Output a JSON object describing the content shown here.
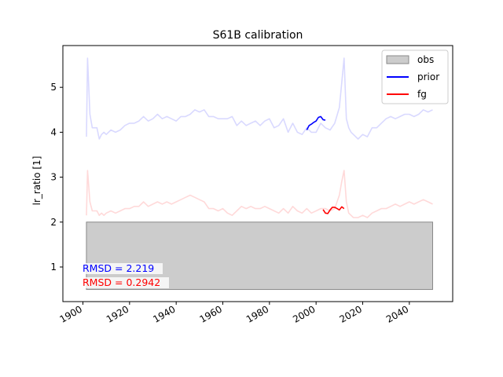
{
  "chart_data": {
    "type": "line",
    "title": "S61B calibration",
    "xlabel": "",
    "ylabel": "lr_ratio [1]",
    "xlim": [
      1891.4,
      2058.6
    ],
    "ylim": [
      0.23,
      5.93
    ],
    "xticks": [
      1900,
      1920,
      1940,
      1960,
      1980,
      2000,
      2020,
      2040
    ],
    "xtick_labels": [
      "1900",
      "1920",
      "1940",
      "1960",
      "1980",
      "2000",
      "2020",
      "2040"
    ],
    "yticks": [
      1,
      2,
      3,
      4,
      5
    ],
    "ytick_labels": [
      "1",
      "2",
      "3",
      "4",
      "5"
    ],
    "grid": false,
    "legend_position": "top-right",
    "legend": [
      {
        "label": "obs",
        "kind": "patch",
        "color": "#cccccc"
      },
      {
        "label": "prior",
        "kind": "line",
        "color": "#0000ff"
      },
      {
        "label": "fg",
        "kind": "line",
        "color": "#ff0000"
      }
    ],
    "obs_band": {
      "x": [
        1901.5,
        2050
      ],
      "y": [
        0.5,
        2.0
      ]
    },
    "series": [
      {
        "name": "prior",
        "color": "#0000ff",
        "x": [
          1996,
          1997,
          1998,
          1999,
          2000,
          2001,
          2002,
          2003,
          2004
        ],
        "y": [
          4.05,
          4.15,
          4.18,
          4.22,
          4.25,
          4.33,
          4.35,
          4.28,
          4.27
        ]
      },
      {
        "name": "fg",
        "color": "#ff0000",
        "x": [
          2003,
          2004,
          2005,
          2006,
          2007,
          2008,
          2009,
          2010,
          2011,
          2012
        ],
        "y": [
          2.28,
          2.2,
          2.19,
          2.27,
          2.33,
          2.33,
          2.3,
          2.27,
          2.34,
          2.3
        ]
      },
      {
        "name": "",
        "color": "#0000ff",
        "opacity": 0.15,
        "x": [
          1901.5,
          1902,
          1903,
          1904,
          1905,
          1906,
          1907,
          1908,
          1909,
          1910,
          1912,
          1914,
          1916,
          1918,
          1920,
          1922,
          1924,
          1926,
          1928,
          1930,
          1932,
          1934,
          1936,
          1938,
          1940,
          1942,
          1944,
          1946,
          1948,
          1950,
          1952,
          1954,
          1956,
          1958,
          1960,
          1962,
          1964,
          1966,
          1968,
          1970,
          1972,
          1974,
          1976,
          1978,
          1980,
          1982,
          1984,
          1986,
          1988,
          1990,
          1992,
          1994,
          1996,
          1998,
          2000,
          2002,
          2004,
          2006,
          2008,
          2010,
          2011,
          2012,
          2013,
          2014,
          2015,
          2016,
          2018,
          2020,
          2022,
          2024,
          2026,
          2028,
          2030,
          2032,
          2034,
          2036,
          2038,
          2040,
          2042,
          2044,
          2046,
          2048,
          2050
        ],
        "y": [
          3.9,
          5.65,
          4.4,
          4.1,
          4.1,
          4.1,
          3.85,
          3.95,
          4.0,
          3.95,
          4.05,
          4.0,
          4.05,
          4.15,
          4.2,
          4.2,
          4.25,
          4.35,
          4.25,
          4.3,
          4.4,
          4.3,
          4.35,
          4.3,
          4.25,
          4.35,
          4.35,
          4.4,
          4.5,
          4.45,
          4.5,
          4.35,
          4.35,
          4.3,
          4.3,
          4.3,
          4.35,
          4.15,
          4.25,
          4.15,
          4.2,
          4.25,
          4.15,
          4.25,
          4.3,
          4.1,
          4.15,
          4.3,
          4.0,
          4.2,
          4.0,
          3.95,
          4.1,
          4.0,
          4.0,
          4.2,
          4.1,
          4.05,
          4.2,
          4.55,
          5.1,
          5.65,
          4.3,
          4.1,
          4.0,
          3.95,
          3.85,
          3.95,
          3.9,
          4.1,
          4.1,
          4.2,
          4.3,
          4.35,
          4.3,
          4.35,
          4.4,
          4.4,
          4.35,
          4.4,
          4.5,
          4.45,
          4.5
        ]
      },
      {
        "name": "",
        "color": "#ff0000",
        "opacity": 0.15,
        "x": [
          1901.5,
          1902,
          1903,
          1904,
          1905,
          1906,
          1907,
          1908,
          1909,
          1910,
          1912,
          1914,
          1916,
          1918,
          1920,
          1922,
          1924,
          1926,
          1928,
          1930,
          1932,
          1934,
          1936,
          1938,
          1940,
          1942,
          1944,
          1946,
          1948,
          1950,
          1952,
          1954,
          1956,
          1958,
          1960,
          1962,
          1964,
          1966,
          1968,
          1970,
          1972,
          1974,
          1976,
          1978,
          1980,
          1982,
          1984,
          1986,
          1988,
          1990,
          1992,
          1994,
          1996,
          1998,
          2000,
          2002,
          2004,
          2006,
          2008,
          2010,
          2011,
          2012,
          2013,
          2014,
          2015,
          2016,
          2018,
          2020,
          2022,
          2024,
          2026,
          2028,
          2030,
          2032,
          2034,
          2036,
          2038,
          2040,
          2042,
          2044,
          2046,
          2048,
          2050
        ],
        "y": [
          2.15,
          3.15,
          2.45,
          2.25,
          2.25,
          2.25,
          2.15,
          2.2,
          2.15,
          2.2,
          2.25,
          2.2,
          2.25,
          2.3,
          2.3,
          2.35,
          2.35,
          2.45,
          2.35,
          2.4,
          2.45,
          2.4,
          2.45,
          2.4,
          2.45,
          2.5,
          2.55,
          2.6,
          2.55,
          2.5,
          2.45,
          2.3,
          2.3,
          2.25,
          2.3,
          2.2,
          2.15,
          2.25,
          2.35,
          2.3,
          2.35,
          2.3,
          2.3,
          2.35,
          2.3,
          2.25,
          2.2,
          2.3,
          2.2,
          2.35,
          2.25,
          2.2,
          2.3,
          2.2,
          2.25,
          2.3,
          2.3,
          2.25,
          2.3,
          2.6,
          2.9,
          3.15,
          2.45,
          2.2,
          2.15,
          2.1,
          2.1,
          2.15,
          2.1,
          2.2,
          2.25,
          2.3,
          2.3,
          2.35,
          2.4,
          2.35,
          2.4,
          2.45,
          2.4,
          2.45,
          2.5,
          2.45,
          2.4
        ]
      }
    ],
    "annotations": [
      {
        "text": "RMSD = 2.219",
        "color": "#0000ff"
      },
      {
        "text": "RMSD = 0.2942",
        "color": "#ff0000"
      }
    ]
  }
}
